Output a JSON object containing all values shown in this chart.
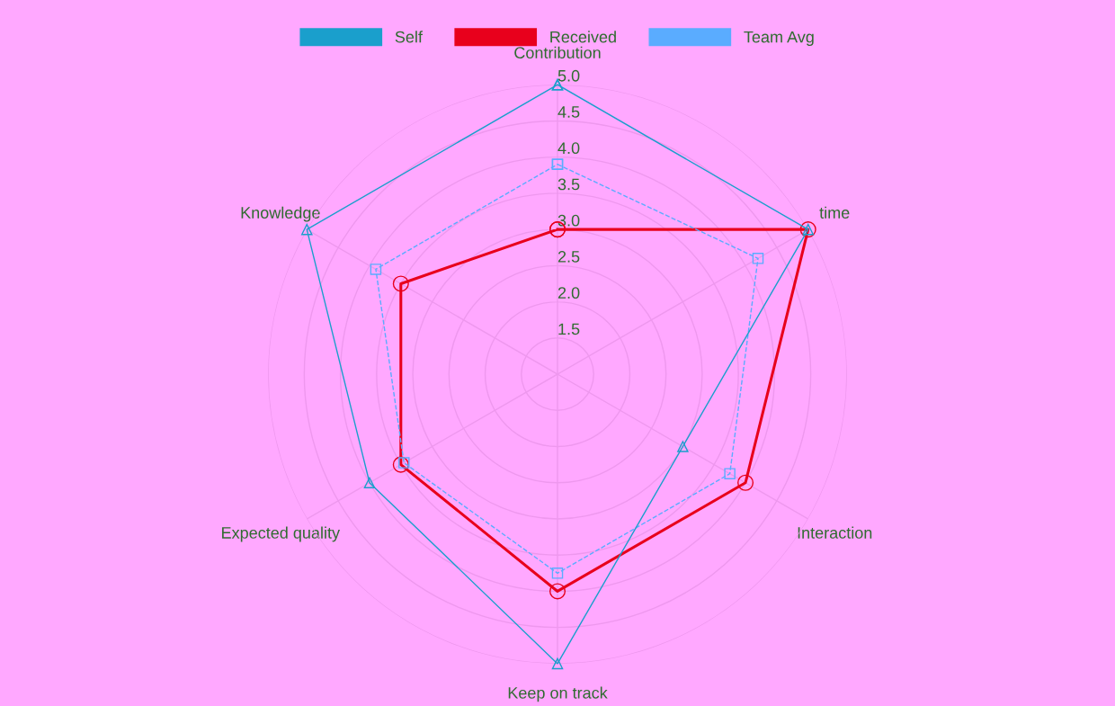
{
  "chart_data": {
    "type": "radar",
    "categories": [
      "Contribution",
      "time",
      "Interaction",
      "Keep on track",
      "Expected quality",
      "Knowledge"
    ],
    "series": [
      {
        "name": "Self",
        "color": "#1a9fcc",
        "values": [
          5.0,
          5.0,
          3.0,
          5.0,
          4.0,
          5.0
        ],
        "marker": "triangle",
        "line_style": "solid"
      },
      {
        "name": "Received",
        "color": "#e8001c",
        "values": [
          3.0,
          5.0,
          4.0,
          4.0,
          3.5,
          3.5
        ],
        "marker": "circle",
        "line_style": "solid"
      },
      {
        "name": "Team Avg",
        "color": "#5aacff",
        "values": [
          3.9,
          4.2,
          3.75,
          3.75,
          3.45,
          3.9
        ],
        "marker": "square",
        "line_style": "dashed"
      }
    ],
    "ylim": [
      1,
      5
    ],
    "yticks": [
      1.5,
      {
        "value": 2,
        "label": "2.0"
      },
      2.5,
      {
        "value": 3,
        "label": "3.0"
      },
      3.5,
      {
        "value": 4,
        "label": "4.0"
      },
      4.5,
      {
        "value": 5,
        "label": "5.0"
      }
    ],
    "grid": true,
    "legend": "top"
  }
}
